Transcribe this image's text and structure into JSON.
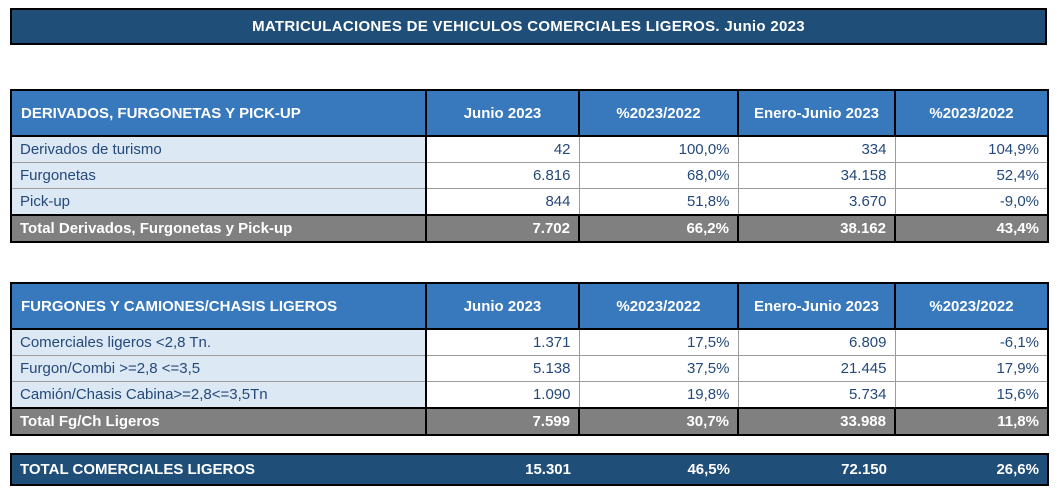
{
  "title": "MATRICULACIONES DE VEHICULOS COMERCIALES LIGEROS. Junio 2023",
  "columns": [
    "Junio 2023",
    "%2023/2022",
    "Enero-Junio 2023",
    "%2023/2022"
  ],
  "tables": [
    {
      "header": "DERIVADOS, FURGONETAS Y PICK-UP",
      "rows": [
        {
          "label": "Derivados de turismo",
          "values": [
            "42",
            "100,0%",
            "334",
            "104,9%"
          ]
        },
        {
          "label": "Furgonetas",
          "values": [
            "6.816",
            "68,0%",
            "34.158",
            "52,4%"
          ]
        },
        {
          "label": "Pick-up",
          "values": [
            "844",
            "51,8%",
            "3.670",
            "-9,0%"
          ]
        }
      ],
      "total": {
        "label": "Total Derivados, Furgonetas y Pick-up",
        "values": [
          "7.702",
          "66,2%",
          "38.162",
          "43,4%"
        ]
      }
    },
    {
      "header": "FURGONES Y CAMIONES/CHASIS LIGEROS",
      "rows": [
        {
          "label": "Comerciales ligeros <2,8 Tn.",
          "values": [
            "1.371",
            "17,5%",
            "6.809",
            "-6,1%"
          ]
        },
        {
          "label": "Furgon/Combi >=2,8 <=3,5",
          "values": [
            "5.138",
            "37,5%",
            "21.445",
            "17,9%"
          ]
        },
        {
          "label": "Camión/Chasis Cabina>=2,8<=3,5Tn",
          "values": [
            "1.090",
            "19,8%",
            "5.734",
            "15,6%"
          ]
        }
      ],
      "total": {
        "label": "Total Fg/Ch Ligeros",
        "values": [
          "7.599",
          "30,7%",
          "33.988",
          "11,8%"
        ]
      }
    }
  ],
  "grand_total": {
    "label": "TOTAL COMERCIALES LIGEROS",
    "values": [
      "15.301",
      "46,5%",
      "72.150",
      "26,6%"
    ]
  },
  "colors": {
    "title_bar_bg": "#1F4E79",
    "table_header_bg": "#3878BC",
    "label_cell_bg": "#DCE8F3",
    "total_row_bg": "#808080",
    "grand_total_bg": "#1F4E79",
    "data_text": "#24497A",
    "header_text": "#FFFFFF"
  }
}
